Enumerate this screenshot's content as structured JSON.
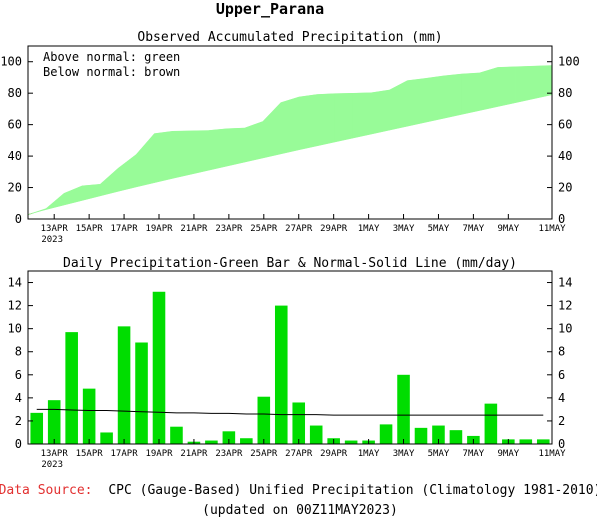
{
  "region_title": "Upper_Parana",
  "colors": {
    "above_normal": "#98fb98",
    "below_normal": "#a0522d",
    "daily_bar": "#00dd00",
    "source_label": "#e23030",
    "axis": "#000000"
  },
  "footer": {
    "source_label": "Data Source:",
    "source_text": "CPC (Gauge-Based) Unified Precipitation (Climatology 1981-2010)",
    "updated": "(updated on 00Z11MAY2023)"
  },
  "chart_data": [
    {
      "type": "area",
      "title": "Observed Accumulated Precipitation (mm)",
      "legend": [
        "Above normal: green",
        "Below normal: brown"
      ],
      "legend_placement": "top-left",
      "tick_labels": [
        "13APR",
        "15APR",
        "17APR",
        "19APR",
        "21APR",
        "23APR",
        "25APR",
        "27APR",
        "29APR",
        "1MAY",
        "3MAY",
        "5MAY",
        "7MAY",
        "9MAY",
        "11MAY"
      ],
      "tick_sublabel": "2023",
      "ylim": [
        0,
        110
      ],
      "yticks": [
        0,
        20,
        40,
        60,
        80,
        100
      ],
      "x": [
        "12APR",
        "13APR",
        "14APR",
        "15APR",
        "16APR",
        "17APR",
        "18APR",
        "19APR",
        "20APR",
        "21APR",
        "22APR",
        "23APR",
        "24APR",
        "25APR",
        "26APR",
        "27APR",
        "28APR",
        "29APR",
        "30APR",
        "1MAY",
        "2MAY",
        "3MAY",
        "4MAY",
        "5MAY",
        "6MAY",
        "7MAY",
        "8MAY",
        "9MAY",
        "10MAY",
        "11MAY"
      ],
      "series": [
        {
          "name": "Observed",
          "values": [
            2.7,
            6.5,
            16.2,
            21.0,
            22.0,
            32.2,
            41.0,
            54.2,
            55.7,
            55.9,
            56.2,
            57.3,
            57.8,
            61.9,
            73.9,
            77.5,
            79.1,
            79.6,
            79.9,
            80.2,
            81.9,
            87.9,
            89.3,
            90.9,
            92.1,
            92.8,
            96.3,
            96.7,
            97.1,
            97.5
          ]
        },
        {
          "name": "Normal",
          "values": [
            2.9,
            6.0,
            8.9,
            11.8,
            14.7,
            17.6,
            20.4,
            23.1,
            25.8,
            28.4,
            31.0,
            33.6,
            36.2,
            38.8,
            41.4,
            44.0,
            46.5,
            49.0,
            51.5,
            54.0,
            56.5,
            59.0,
            61.5,
            64.0,
            66.5,
            69.0,
            71.5,
            74.0,
            76.5,
            79.0
          ]
        }
      ]
    },
    {
      "type": "bar",
      "title": "Daily Precipitation-Green Bar & Normal-Solid Line (mm/day)",
      "tick_labels": [
        "13APR",
        "15APR",
        "17APR",
        "19APR",
        "21APR",
        "23APR",
        "25APR",
        "27APR",
        "29APR",
        "1MAY",
        "3MAY",
        "5MAY",
        "7MAY",
        "9MAY",
        "11MAY"
      ],
      "tick_sublabel": "2023",
      "ylim": [
        0,
        15
      ],
      "yticks": [
        0,
        2,
        4,
        6,
        8,
        10,
        12,
        14
      ],
      "categories": [
        "12APR",
        "13APR",
        "14APR",
        "15APR",
        "16APR",
        "17APR",
        "18APR",
        "19APR",
        "20APR",
        "21APR",
        "22APR",
        "23APR",
        "24APR",
        "25APR",
        "26APR",
        "27APR",
        "28APR",
        "29APR",
        "30APR",
        "1MAY",
        "2MAY",
        "3MAY",
        "4MAY",
        "5MAY",
        "6MAY",
        "7MAY",
        "8MAY",
        "9MAY",
        "10MAY",
        "11MAY"
      ],
      "series": [
        {
          "name": "Daily precipitation",
          "values": [
            2.7,
            3.8,
            9.7,
            4.8,
            1.0,
            10.2,
            8.8,
            13.2,
            1.5,
            0.2,
            0.3,
            1.1,
            0.5,
            4.1,
            12.0,
            3.6,
            1.6,
            0.5,
            0.3,
            0.3,
            1.7,
            6.0,
            1.4,
            1.6,
            1.2,
            0.7,
            3.5,
            0.4,
            0.4,
            0.4
          ]
        },
        {
          "name": "Normal",
          "values": [
            3.0,
            3.0,
            2.95,
            2.9,
            2.9,
            2.85,
            2.8,
            2.75,
            2.7,
            2.7,
            2.65,
            2.65,
            2.6,
            2.6,
            2.55,
            2.55,
            2.55,
            2.5,
            2.5,
            2.5,
            2.5,
            2.5,
            2.5,
            2.5,
            2.5,
            2.5,
            2.5,
            2.5,
            2.5,
            2.5
          ]
        }
      ]
    }
  ]
}
